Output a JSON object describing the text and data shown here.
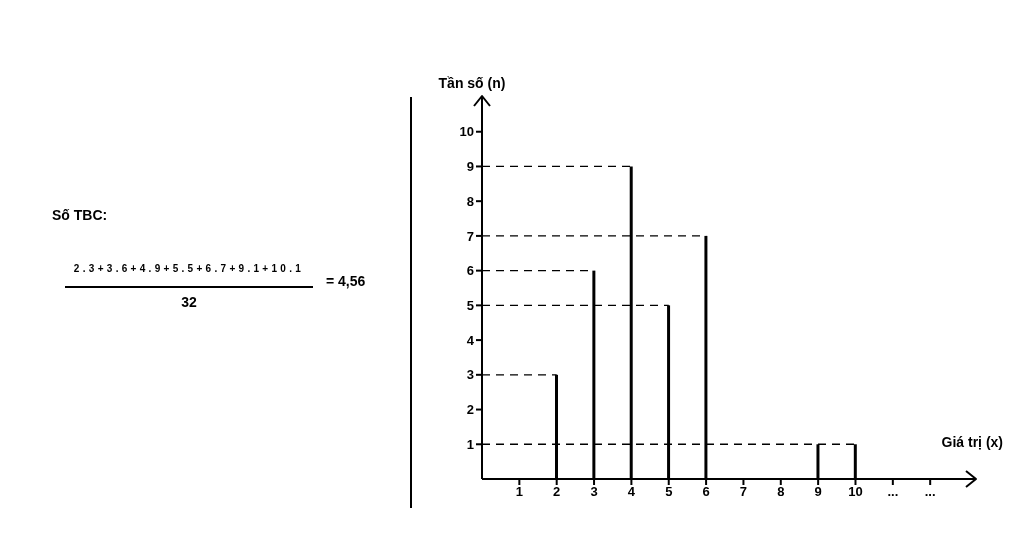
{
  "chart_data": {
    "type": "bar",
    "x": [
      2,
      3,
      4,
      5,
      6,
      9,
      10
    ],
    "values": [
      3,
      6,
      9,
      5,
      7,
      1,
      1
    ],
    "color": "#000000",
    "xlim": [
      0,
      13.2
    ],
    "xticks": [
      1,
      2,
      3,
      4,
      5,
      6,
      7,
      8,
      9,
      10,
      {
        "value": 11,
        "label": "..."
      },
      {
        "value": 12,
        "label": "..."
      }
    ],
    "ylim": [
      0,
      11
    ],
    "yticks": [
      1,
      2,
      3,
      4,
      5,
      6,
      7,
      8,
      9,
      10
    ],
    "xlabel": "Giá trị (x)",
    "ylabel": "Tần số (n)",
    "ref_lines": [
      {
        "axis": "y",
        "value": 9,
        "color": "#000000",
        "line_style": "dashed"
      },
      {
        "axis": "y",
        "value": 7,
        "color": "#000000",
        "line_style": "dashed"
      },
      {
        "axis": "y",
        "value": 6,
        "color": "#000000",
        "line_style": "dashed"
      },
      {
        "axis": "y",
        "value": 5,
        "color": "#000000",
        "line_style": "dashed"
      },
      {
        "axis": "y",
        "value": 3,
        "color": "#000000",
        "line_style": "dashed"
      },
      {
        "axis": "y",
        "value": 1,
        "color": "#000000",
        "line_style": "dashed"
      }
    ],
    "annotations": [
      "Số TBC:",
      "2.3+3.6+4.9+5.5+6.7+9.1+10.1",
      "32",
      "= 4,56"
    ]
  }
}
